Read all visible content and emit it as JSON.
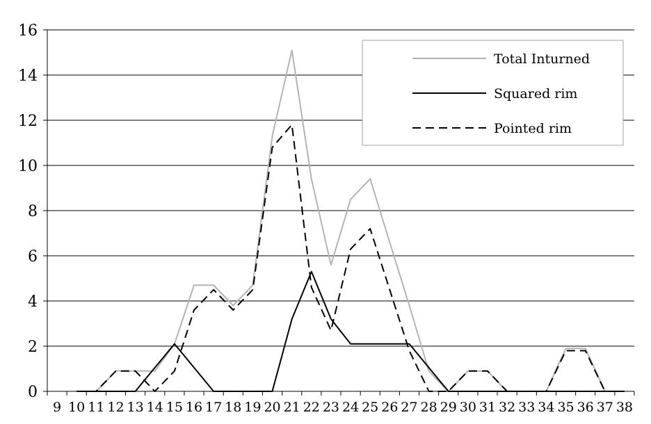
{
  "chart_data": {
    "type": "line",
    "title": "",
    "xlabel": "",
    "ylabel": "",
    "x": [
      9,
      10,
      11,
      12,
      13,
      14,
      15,
      16,
      17,
      18,
      19,
      20,
      21,
      22,
      23,
      24,
      25,
      26,
      27,
      28,
      29,
      30,
      31,
      32,
      33,
      34,
      35,
      36,
      37,
      38
    ],
    "ylim": [
      0,
      16
    ],
    "yticks": [
      0,
      2,
      4,
      6,
      8,
      10,
      12,
      14,
      16
    ],
    "grid": "horizontal",
    "legend_position": "top-right",
    "series": [
      {
        "name": "Total Inturned",
        "color": "#b3b3b3",
        "dash": "solid",
        "values": [
          null,
          0,
          0,
          0.9,
          0.9,
          0.9,
          2.1,
          4.7,
          4.7,
          3.8,
          4.7,
          11.3,
          15.1,
          9.4,
          5.6,
          8.5,
          9.4,
          6.6,
          3.8,
          0.9,
          0,
          0.9,
          0.9,
          0,
          0,
          0,
          1.9,
          1.9,
          0,
          0
        ]
      },
      {
        "name": "Squared rim",
        "color": "#000000",
        "dash": "solid",
        "values": [
          null,
          0,
          0,
          0,
          0,
          1.05,
          2.1,
          1.05,
          0,
          0,
          0,
          0,
          3.2,
          5.3,
          3.2,
          2.1,
          2.1,
          2.1,
          2.1,
          1.05,
          0,
          0,
          0,
          0,
          0,
          0,
          0,
          0,
          0,
          0
        ]
      },
      {
        "name": "Pointed rim",
        "color": "#000000",
        "dash": "dashed",
        "values": [
          null,
          0,
          0,
          0.9,
          0.9,
          0,
          0.9,
          3.6,
          4.5,
          3.6,
          4.5,
          10.8,
          11.8,
          4.6,
          2.7,
          6.3,
          7.2,
          4.5,
          1.8,
          0,
          0,
          0.9,
          0.9,
          0,
          0,
          0,
          1.8,
          1.8,
          0,
          0
        ]
      }
    ]
  }
}
